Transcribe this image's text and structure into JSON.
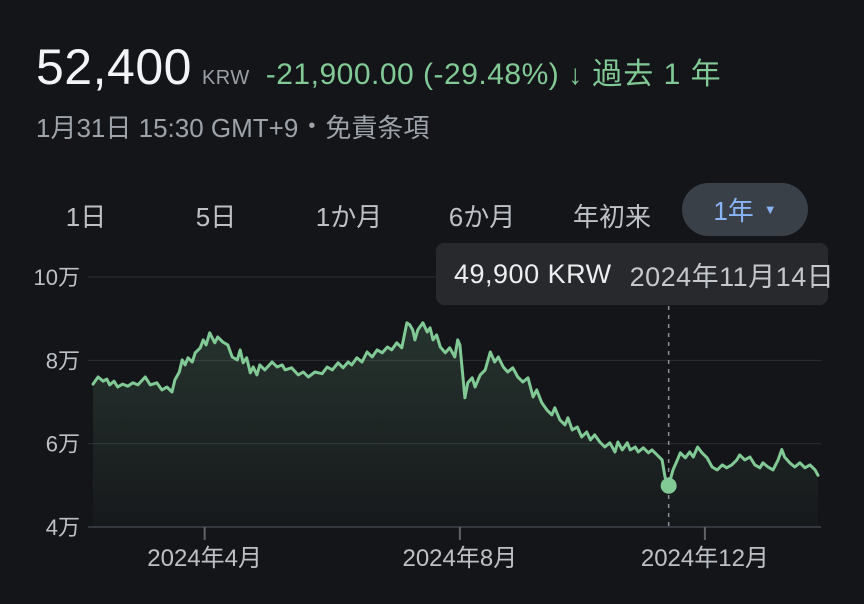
{
  "header": {
    "price": "52,400",
    "currency": "KRW",
    "change": "-21,900.00 (-29.48%)",
    "arrow": "↓",
    "period": "過去 1 年",
    "change_color": "#81c995"
  },
  "subheader": {
    "datetime": "1月31日 15:30 GMT+9",
    "separator": "•",
    "disclaimer": "免責条項"
  },
  "tabs": {
    "items": [
      {
        "label": "1日"
      },
      {
        "label": "5日"
      },
      {
        "label": "1か月"
      },
      {
        "label": "6か月"
      },
      {
        "label": "年初来"
      }
    ],
    "selected": {
      "label": "1年",
      "caret": "▼",
      "text_color": "#8ab4f8"
    }
  },
  "tooltip": {
    "value": "49,900 KRW",
    "date": "2024年11月14日"
  },
  "chart_data": {
    "type": "area",
    "currency": "KRW",
    "period": "1年",
    "line_color": "#81c995",
    "grid": true,
    "y_axis": {
      "min": 40000,
      "max": 100000,
      "ticks": [
        {
          "value": 100000,
          "label": "10万"
        },
        {
          "value": 80000,
          "label": "8万"
        },
        {
          "value": 60000,
          "label": "6万"
        },
        {
          "value": 40000,
          "label": "4万"
        }
      ]
    },
    "x_axis": {
      "ticks": [
        {
          "f": 0.154,
          "label": "2024年4月"
        },
        {
          "f": 0.506,
          "label": "2024年8月"
        },
        {
          "f": 0.844,
          "label": "2024年12月"
        }
      ]
    },
    "hover": {
      "f": 0.794,
      "price": 49900,
      "value_label": "49,900 KRW",
      "date_label": "2024年11月14日"
    },
    "points": [
      [
        0,
        74300
      ],
      [
        0.007,
        76000
      ],
      [
        0.014,
        75000
      ],
      [
        0.019,
        75500
      ],
      [
        0.023,
        74100
      ],
      [
        0.029,
        75000
      ],
      [
        0.034,
        73600
      ],
      [
        0.041,
        74300
      ],
      [
        0.048,
        73800
      ],
      [
        0.055,
        74600
      ],
      [
        0.062,
        74100
      ],
      [
        0.072,
        76000
      ],
      [
        0.079,
        74100
      ],
      [
        0.088,
        74600
      ],
      [
        0.095,
        72900
      ],
      [
        0.102,
        73600
      ],
      [
        0.109,
        72400
      ],
      [
        0.113,
        75300
      ],
      [
        0.119,
        77200
      ],
      [
        0.123,
        80100
      ],
      [
        0.127,
        78900
      ],
      [
        0.131,
        80600
      ],
      [
        0.137,
        79600
      ],
      [
        0.141,
        81800
      ],
      [
        0.148,
        83000
      ],
      [
        0.152,
        84900
      ],
      [
        0.156,
        83700
      ],
      [
        0.161,
        86600
      ],
      [
        0.168,
        84200
      ],
      [
        0.172,
        85600
      ],
      [
        0.179,
        84400
      ],
      [
        0.186,
        83700
      ],
      [
        0.192,
        80800
      ],
      [
        0.199,
        80100
      ],
      [
        0.203,
        82500
      ],
      [
        0.207,
        79400
      ],
      [
        0.212,
        80600
      ],
      [
        0.217,
        77000
      ],
      [
        0.221,
        78400
      ],
      [
        0.226,
        76500
      ],
      [
        0.23,
        78900
      ],
      [
        0.237,
        77700
      ],
      [
        0.247,
        79600
      ],
      [
        0.254,
        78400
      ],
      [
        0.261,
        78900
      ],
      [
        0.265,
        77700
      ],
      [
        0.274,
        78200
      ],
      [
        0.283,
        76500
      ],
      [
        0.29,
        77200
      ],
      [
        0.297,
        76000
      ],
      [
        0.306,
        77200
      ],
      [
        0.316,
        76800
      ],
      [
        0.323,
        78400
      ],
      [
        0.33,
        77700
      ],
      [
        0.338,
        79400
      ],
      [
        0.345,
        78200
      ],
      [
        0.352,
        79600
      ],
      [
        0.357,
        78900
      ],
      [
        0.364,
        80600
      ],
      [
        0.371,
        79600
      ],
      [
        0.378,
        82000
      ],
      [
        0.385,
        80800
      ],
      [
        0.392,
        82500
      ],
      [
        0.399,
        81800
      ],
      [
        0.406,
        83200
      ],
      [
        0.412,
        82500
      ],
      [
        0.419,
        84200
      ],
      [
        0.426,
        83000
      ],
      [
        0.43,
        86600
      ],
      [
        0.433,
        89000
      ],
      [
        0.437,
        88500
      ],
      [
        0.441,
        87300
      ],
      [
        0.444,
        84900
      ],
      [
        0.448,
        87300
      ],
      [
        0.455,
        89000
      ],
      [
        0.461,
        86800
      ],
      [
        0.465,
        87800
      ],
      [
        0.469,
        84900
      ],
      [
        0.474,
        86100
      ],
      [
        0.479,
        83200
      ],
      [
        0.486,
        81800
      ],
      [
        0.492,
        83000
      ],
      [
        0.499,
        80800
      ],
      [
        0.503,
        84900
      ],
      [
        0.506,
        83700
      ],
      [
        0.513,
        71000
      ],
      [
        0.517,
        74600
      ],
      [
        0.523,
        75800
      ],
      [
        0.527,
        73600
      ],
      [
        0.534,
        76500
      ],
      [
        0.541,
        77700
      ],
      [
        0.548,
        82000
      ],
      [
        0.554,
        79600
      ],
      [
        0.559,
        80800
      ],
      [
        0.566,
        78400
      ],
      [
        0.572,
        77200
      ],
      [
        0.579,
        78200
      ],
      [
        0.586,
        76000
      ],
      [
        0.593,
        74800
      ],
      [
        0.6,
        75800
      ],
      [
        0.607,
        71200
      ],
      [
        0.612,
        72900
      ],
      [
        0.619,
        69800
      ],
      [
        0.626,
        68100
      ],
      [
        0.633,
        66900
      ],
      [
        0.637,
        68600
      ],
      [
        0.644,
        65700
      ],
      [
        0.651,
        64500
      ],
      [
        0.655,
        66200
      ],
      [
        0.661,
        63300
      ],
      [
        0.668,
        64000
      ],
      [
        0.674,
        61600
      ],
      [
        0.681,
        62800
      ],
      [
        0.686,
        60900
      ],
      [
        0.692,
        62100
      ],
      [
        0.699,
        60400
      ],
      [
        0.706,
        59200
      ],
      [
        0.713,
        60200
      ],
      [
        0.72,
        58000
      ],
      [
        0.724,
        60400
      ],
      [
        0.73,
        58500
      ],
      [
        0.737,
        60200
      ],
      [
        0.741,
        58500
      ],
      [
        0.748,
        59200
      ],
      [
        0.752,
        58000
      ],
      [
        0.759,
        59000
      ],
      [
        0.766,
        57800
      ],
      [
        0.771,
        58500
      ],
      [
        0.778,
        57300
      ],
      [
        0.785,
        56100
      ],
      [
        0.789,
        52000
      ],
      [
        0.794,
        49900
      ],
      [
        0.8,
        53700
      ],
      [
        0.806,
        56100
      ],
      [
        0.81,
        57800
      ],
      [
        0.817,
        56600
      ],
      [
        0.823,
        58000
      ],
      [
        0.828,
        56800
      ],
      [
        0.834,
        59200
      ],
      [
        0.84,
        57800
      ],
      [
        0.847,
        56600
      ],
      [
        0.854,
        54400
      ],
      [
        0.861,
        53700
      ],
      [
        0.868,
        54900
      ],
      [
        0.874,
        54200
      ],
      [
        0.881,
        54900
      ],
      [
        0.888,
        56100
      ],
      [
        0.892,
        57300
      ],
      [
        0.899,
        56100
      ],
      [
        0.906,
        56800
      ],
      [
        0.913,
        54900
      ],
      [
        0.92,
        54200
      ],
      [
        0.924,
        55400
      ],
      [
        0.931,
        54400
      ],
      [
        0.938,
        53700
      ],
      [
        0.945,
        56100
      ],
      [
        0.95,
        58600
      ],
      [
        0.954,
        56800
      ],
      [
        0.961,
        55400
      ],
      [
        0.968,
        54400
      ],
      [
        0.975,
        55400
      ],
      [
        0.982,
        54200
      ],
      [
        0.989,
        54900
      ],
      [
        0.996,
        53700
      ],
      [
        1,
        52400
      ]
    ]
  }
}
